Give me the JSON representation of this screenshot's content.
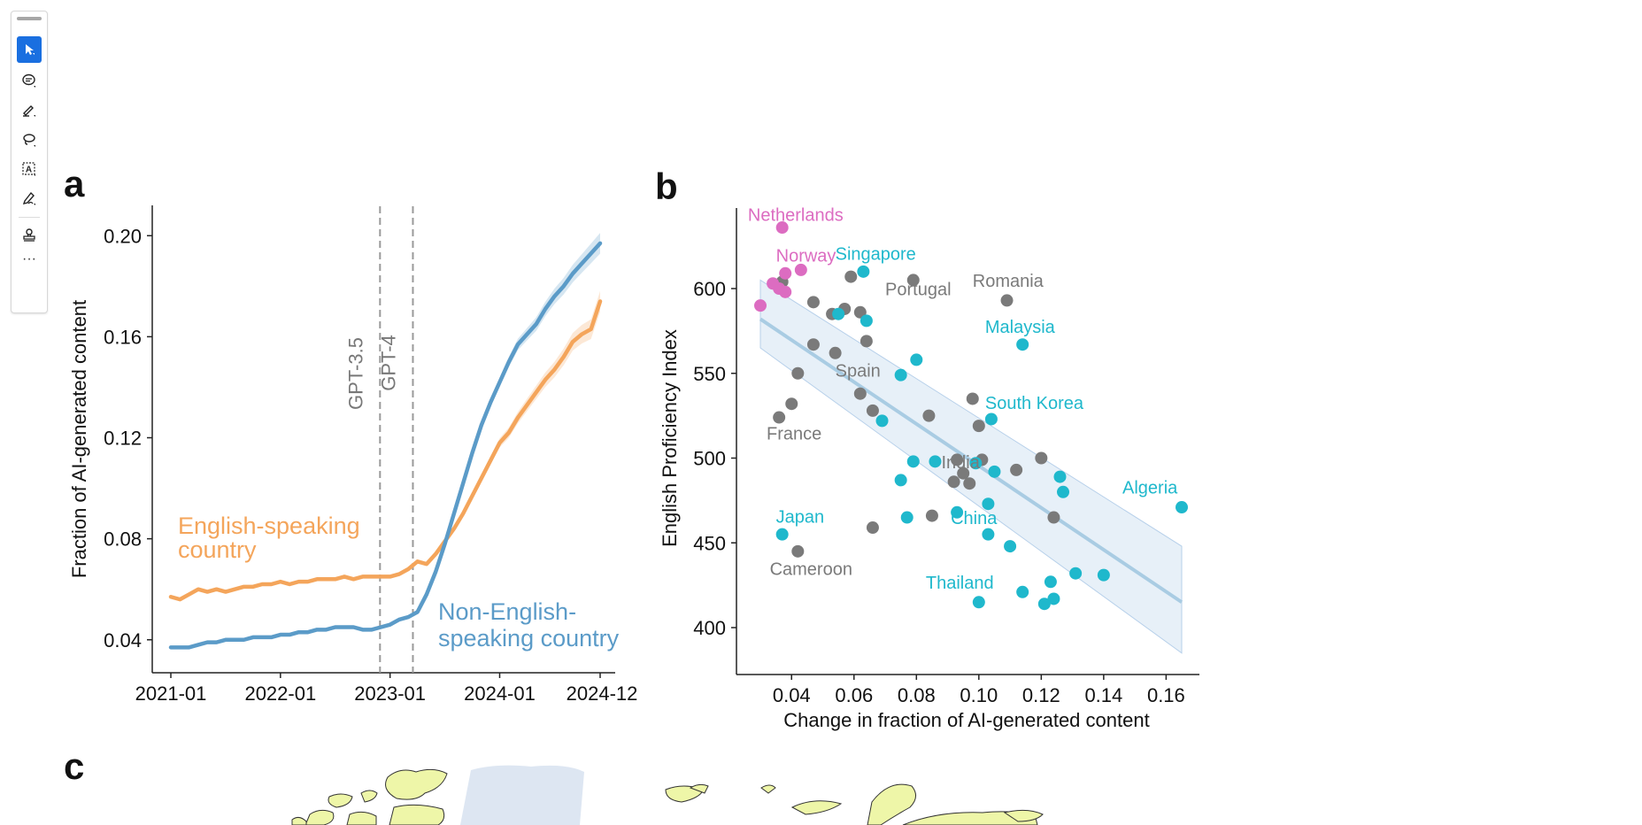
{
  "toolbar": {
    "tools": [
      {
        "icon": "select-arrow-icon",
        "active": true
      },
      {
        "icon": "comment-icon",
        "active": false
      },
      {
        "icon": "highlight-pen-icon",
        "active": false
      },
      {
        "icon": "lasso-icon",
        "active": false
      },
      {
        "icon": "text-box-icon",
        "active": false
      },
      {
        "icon": "sign-pen-icon",
        "active": false
      },
      {
        "icon": "stamp-icon",
        "active": false
      }
    ],
    "more_label": "···"
  },
  "panel_labels": {
    "a": "a",
    "b": "b",
    "c": "c"
  },
  "colors": {
    "english": "#f4a55b",
    "non_english": "#5b9bc8",
    "gray_country": "#7a7a7a",
    "cyan_country": "#1fb8cc",
    "pink_country": "#dc6cc1",
    "regression": "#a9cce3",
    "map_land": "#eef6a8",
    "map_greenland": "#dde6f2"
  },
  "chart_data": [
    {
      "type": "line",
      "panel": "a",
      "title": "",
      "xlabel": "",
      "ylabel": "Fraction of AI-generated content",
      "x_ticks": [
        "2021-01",
        "2022-01",
        "2023-01",
        "2024-01",
        "2024-12"
      ],
      "y_ticks": [
        "0.04",
        "0.08",
        "0.12",
        "0.16",
        "0.20"
      ],
      "ylim": [
        0.028,
        0.205
      ],
      "x_months": [
        0,
        1,
        2,
        3,
        4,
        5,
        6,
        7,
        8,
        9,
        10,
        11,
        12,
        13,
        14,
        15,
        16,
        17,
        18,
        19,
        20,
        21,
        22,
        23,
        24,
        25,
        26,
        27,
        28,
        29,
        30,
        31,
        32,
        33,
        34,
        35,
        36,
        37,
        38,
        39,
        40,
        41,
        42,
        43,
        44,
        45,
        46,
        47
      ],
      "vlines": [
        {
          "label": "GPT-3.5",
          "month": 22.9
        },
        {
          "label": "GPT-4",
          "month": 26.5
        }
      ],
      "series": [
        {
          "name": "English-speaking country",
          "label_lines": [
            "English-speaking",
            "country"
          ],
          "values": [
            0.057,
            0.056,
            0.058,
            0.06,
            0.059,
            0.06,
            0.059,
            0.06,
            0.061,
            0.061,
            0.062,
            0.062,
            0.063,
            0.062,
            0.063,
            0.063,
            0.064,
            0.064,
            0.064,
            0.065,
            0.064,
            0.065,
            0.065,
            0.065,
            0.065,
            0.066,
            0.068,
            0.071,
            0.07,
            0.074,
            0.079,
            0.084,
            0.09,
            0.097,
            0.104,
            0.111,
            0.118,
            0.122,
            0.128,
            0.133,
            0.138,
            0.143,
            0.147,
            0.152,
            0.158,
            0.161,
            0.163,
            0.174
          ]
        },
        {
          "name": "Non-English-speaking country",
          "label_lines": [
            "Non-English-",
            "speaking country"
          ],
          "values": [
            0.037,
            0.037,
            0.037,
            0.038,
            0.039,
            0.039,
            0.04,
            0.04,
            0.04,
            0.041,
            0.041,
            0.041,
            0.042,
            0.042,
            0.043,
            0.043,
            0.044,
            0.044,
            0.045,
            0.045,
            0.045,
            0.044,
            0.044,
            0.045,
            0.046,
            0.048,
            0.049,
            0.051,
            0.058,
            0.067,
            0.078,
            0.09,
            0.102,
            0.114,
            0.125,
            0.134,
            0.142,
            0.15,
            0.157,
            0.161,
            0.165,
            0.171,
            0.176,
            0.18,
            0.185,
            0.189,
            0.193,
            0.197
          ]
        }
      ]
    },
    {
      "type": "scatter",
      "panel": "b",
      "title": "",
      "xlabel": "Change in fraction of AI-generated content",
      "ylabel": "English Proficiency Index",
      "x_ticks": [
        "0.04",
        "0.06",
        "0.08",
        "0.10",
        "0.12",
        "0.14",
        "0.16"
      ],
      "y_ticks": [
        "400",
        "450",
        "500",
        "550",
        "600"
      ],
      "xlim": [
        0.025,
        0.172
      ],
      "ylim": [
        372,
        647
      ],
      "regression": {
        "x": [
          0.03,
          0.165
        ],
        "y": [
          582,
          415
        ],
        "band_lower": [
          565,
          385
        ],
        "band_upper": [
          605,
          448
        ]
      },
      "points_gray": [
        [
          0.037,
          604
        ],
        [
          0.059,
          607
        ],
        [
          0.079,
          605
        ],
        [
          0.109,
          593
        ],
        [
          0.047,
          592
        ],
        [
          0.057,
          588
        ],
        [
          0.053,
          585
        ],
        [
          0.062,
          586
        ],
        [
          0.047,
          567
        ],
        [
          0.054,
          562
        ],
        [
          0.064,
          569
        ],
        [
          0.042,
          550
        ],
        [
          0.04,
          532
        ],
        [
          0.036,
          524
        ],
        [
          0.062,
          538
        ],
        [
          0.066,
          528
        ],
        [
          0.084,
          525
        ],
        [
          0.098,
          535
        ],
        [
          0.1,
          519
        ],
        [
          0.093,
          499
        ],
        [
          0.095,
          491
        ],
        [
          0.092,
          486
        ],
        [
          0.097,
          485
        ],
        [
          0.101,
          499
        ],
        [
          0.112,
          493
        ],
        [
          0.12,
          500
        ],
        [
          0.085,
          466
        ],
        [
          0.124,
          465
        ],
        [
          0.066,
          459
        ],
        [
          0.042,
          445
        ]
      ],
      "points_cyan": [
        [
          0.063,
          610
        ],
        [
          0.055,
          585
        ],
        [
          0.064,
          581
        ],
        [
          0.114,
          567
        ],
        [
          0.08,
          558
        ],
        [
          0.075,
          549
        ],
        [
          0.104,
          523
        ],
        [
          0.069,
          522
        ],
        [
          0.079,
          498
        ],
        [
          0.086,
          498
        ],
        [
          0.099,
          497
        ],
        [
          0.105,
          492
        ],
        [
          0.126,
          489
        ],
        [
          0.127,
          480
        ],
        [
          0.075,
          487
        ],
        [
          0.077,
          465
        ],
        [
          0.093,
          468
        ],
        [
          0.103,
          473
        ],
        [
          0.103,
          455
        ],
        [
          0.11,
          448
        ],
        [
          0.165,
          471
        ],
        [
          0.037,
          455
        ],
        [
          0.131,
          432
        ],
        [
          0.14,
          431
        ],
        [
          0.123,
          427
        ],
        [
          0.114,
          421
        ],
        [
          0.124,
          417
        ],
        [
          0.121,
          414
        ],
        [
          0.1,
          415
        ]
      ],
      "points_pink": [
        [
          0.037,
          636
        ],
        [
          0.043,
          611
        ],
        [
          0.038,
          609
        ],
        [
          0.034,
          603
        ],
        [
          0.036,
          600
        ],
        [
          0.038,
          598
        ],
        [
          0.03,
          590
        ]
      ],
      "country_labels": [
        {
          "text": "Netherlands",
          "group": "pink",
          "x": 0.026,
          "y": 640
        },
        {
          "text": "Norway",
          "group": "pink",
          "x": 0.035,
          "y": 616
        },
        {
          "text": "Singapore",
          "group": "cyan",
          "x": 0.054,
          "y": 617
        },
        {
          "text": "Portugal",
          "group": "gray",
          "x": 0.07,
          "y": 596
        },
        {
          "text": "Romania",
          "group": "gray",
          "x": 0.098,
          "y": 601
        },
        {
          "text": "Malaysia",
          "group": "cyan",
          "x": 0.102,
          "y": 574
        },
        {
          "text": "Spain",
          "group": "gray",
          "x": 0.054,
          "y": 548
        },
        {
          "text": "South Korea",
          "group": "cyan",
          "x": 0.102,
          "y": 529
        },
        {
          "text": "France",
          "group": "gray",
          "x": 0.032,
          "y": 511
        },
        {
          "text": "India",
          "group": "gray",
          "x": 0.088,
          "y": 494
        },
        {
          "text": "Algeria",
          "group": "cyan",
          "x": 0.146,
          "y": 479
        },
        {
          "text": "Japan",
          "group": "cyan",
          "x": 0.035,
          "y": 462
        },
        {
          "text": "China",
          "group": "cyan",
          "x": 0.091,
          "y": 461
        },
        {
          "text": "Cameroon",
          "group": "gray",
          "x": 0.033,
          "y": 431
        },
        {
          "text": "Thailand",
          "group": "cyan",
          "x": 0.083,
          "y": 423
        }
      ]
    }
  ]
}
